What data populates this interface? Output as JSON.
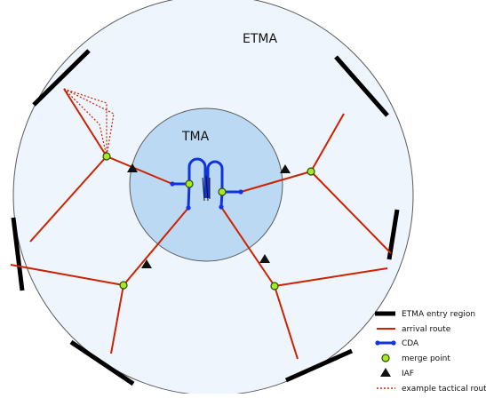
{
  "diagram": {
    "outer_label": "ETMA",
    "inner_label": "TMA",
    "colors": {
      "etma_fill": "#eef5fc",
      "etma_stroke": "#5a5a5a",
      "tma_fill": "#bcd9f4",
      "tma_stroke": "#5a5a5a",
      "entry_region": "#000000",
      "arrival_route": "#cc2200",
      "cda": "#1133dd",
      "merge_fill": "#a6e82a",
      "merge_stroke": "#2b4d00",
      "iaf": "#111111",
      "tactical": "#cc2200"
    }
  },
  "legend": {
    "items": [
      {
        "key": "entry",
        "label": "ETMA entry region"
      },
      {
        "key": "arrival",
        "label": "arrival route"
      },
      {
        "key": "cda",
        "label": "CDA"
      },
      {
        "key": "merge",
        "label": "merge point"
      },
      {
        "key": "iaf",
        "label": "IAF"
      },
      {
        "key": "tactical",
        "label": "example tactical routes"
      }
    ]
  }
}
